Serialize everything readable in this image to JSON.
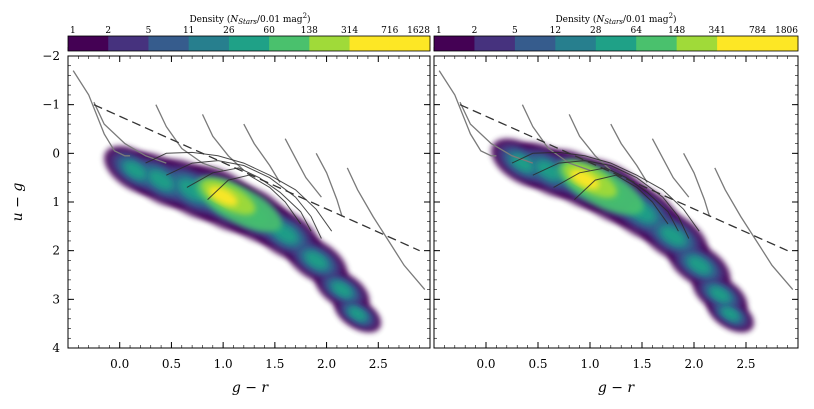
{
  "chart_data": [
    {
      "type": "heatmap",
      "panel": "left",
      "xlabel": "g − r",
      "ylabel": "u − g",
      "xlim": [
        -0.5,
        3.0
      ],
      "ylim": [
        4,
        -2
      ],
      "xticks": [
        "0.0",
        "0.5",
        "1.0",
        "1.5",
        "2.0",
        "2.5"
      ],
      "yticks": [
        "−2",
        "−1",
        "0",
        "1",
        "2",
        "3",
        "4"
      ],
      "colorbar": {
        "title": "Density (N_Stars/0.01 mag²)",
        "title_main": "Density (",
        "title_var": "N",
        "title_sub": "Stars",
        "title_rest": "/0.01 mag",
        "title_sup": "2",
        "title_end": ")",
        "ticks": [
          "1",
          "2",
          "5",
          "11",
          "26",
          "60",
          "138",
          "314",
          "716",
          "1628"
        ],
        "colors": [
          "#440154",
          "#46327e",
          "#365c8d",
          "#277f8e",
          "#1fa187",
          "#4ac16d",
          "#a0da39",
          "#fde725",
          "#fde725"
        ]
      },
      "density_peak": {
        "x": 1.05,
        "y": 0.9
      }
    },
    {
      "type": "heatmap",
      "panel": "right",
      "xlabel": "g − r",
      "ylabel": "",
      "xlim": [
        -0.5,
        3.0
      ],
      "ylim": [
        4,
        -2
      ],
      "xticks": [
        "0.0",
        "0.5",
        "1.0",
        "1.5",
        "2.0",
        "2.5"
      ],
      "colorbar": {
        "title": "Density (N_Stars/0.01 mag²)",
        "title_main": "Density (",
        "title_var": "N",
        "title_sub": "Stars",
        "title_rest": "/0.01 mag",
        "title_sup": "2",
        "title_end": ")",
        "ticks": [
          "1",
          "2",
          "5",
          "12",
          "28",
          "64",
          "148",
          "341",
          "784",
          "1806"
        ],
        "colors": [
          "#440154",
          "#46327e",
          "#365c8d",
          "#277f8e",
          "#1fa187",
          "#4ac16d",
          "#a0da39",
          "#fde725",
          "#fde725"
        ]
      },
      "density_peak": {
        "x": 1.0,
        "y": 0.55
      }
    }
  ],
  "dashed_line": [
    [
      -0.25,
      -1.0
    ],
    [
      2.9,
      2.0
    ]
  ],
  "isochrones_gray": [
    [
      [
        -0.45,
        -1.7
      ],
      [
        -0.3,
        -1.2
      ],
      [
        -0.15,
        -0.4
      ],
      [
        -0.05,
        -0.05
      ],
      [
        0.05,
        0.05
      ],
      [
        0.1,
        0.05
      ]
    ],
    [
      [
        -0.25,
        -1.05
      ],
      [
        -0.15,
        -0.6
      ],
      [
        0.05,
        -0.2
      ],
      [
        0.25,
        0.05
      ],
      [
        0.45,
        0.2
      ]
    ],
    [
      [
        0.35,
        -1.0
      ],
      [
        0.45,
        -0.55
      ],
      [
        0.6,
        -0.1
      ],
      [
        0.8,
        0.2
      ],
      [
        1.0,
        0.35
      ]
    ],
    [
      [
        0.8,
        -0.8
      ],
      [
        0.9,
        -0.35
      ],
      [
        1.05,
        0.05
      ],
      [
        1.2,
        0.35
      ]
    ],
    [
      [
        1.2,
        -0.6
      ],
      [
        1.3,
        -0.2
      ],
      [
        1.45,
        0.25
      ],
      [
        1.55,
        0.6
      ]
    ],
    [
      [
        1.6,
        -0.3
      ],
      [
        1.7,
        0.1
      ],
      [
        1.8,
        0.5
      ],
      [
        1.95,
        0.9
      ]
    ],
    [
      [
        1.9,
        0.0
      ],
      [
        2.0,
        0.4
      ],
      [
        2.1,
        0.95
      ],
      [
        2.15,
        1.3
      ]
    ],
    [
      [
        2.2,
        0.3
      ],
      [
        2.3,
        0.75
      ],
      [
        2.45,
        1.3
      ],
      [
        2.6,
        1.8
      ],
      [
        2.75,
        2.3
      ],
      [
        2.95,
        2.8
      ]
    ]
  ],
  "isochrones_dark": [
    [
      [
        0.25,
        0.2
      ],
      [
        0.45,
        0.0
      ],
      [
        0.7,
        -0.02
      ],
      [
        0.95,
        0.05
      ],
      [
        1.2,
        0.2
      ],
      [
        1.45,
        0.45
      ],
      [
        1.7,
        0.75
      ],
      [
        1.9,
        1.15
      ],
      [
        2.05,
        1.6
      ]
    ],
    [
      [
        0.45,
        0.45
      ],
      [
        0.7,
        0.2
      ],
      [
        0.95,
        0.15
      ],
      [
        1.2,
        0.25
      ],
      [
        1.45,
        0.5
      ],
      [
        1.7,
        0.9
      ],
      [
        1.85,
        1.3
      ],
      [
        1.95,
        1.75
      ]
    ],
    [
      [
        0.65,
        0.7
      ],
      [
        0.9,
        0.4
      ],
      [
        1.15,
        0.3
      ],
      [
        1.35,
        0.5
      ],
      [
        1.55,
        0.8
      ],
      [
        1.75,
        1.2
      ],
      [
        1.85,
        1.6
      ]
    ],
    [
      [
        0.85,
        0.95
      ],
      [
        1.05,
        0.55
      ],
      [
        1.25,
        0.45
      ],
      [
        1.45,
        0.7
      ],
      [
        1.6,
        1.0
      ],
      [
        1.75,
        1.45
      ]
    ]
  ]
}
